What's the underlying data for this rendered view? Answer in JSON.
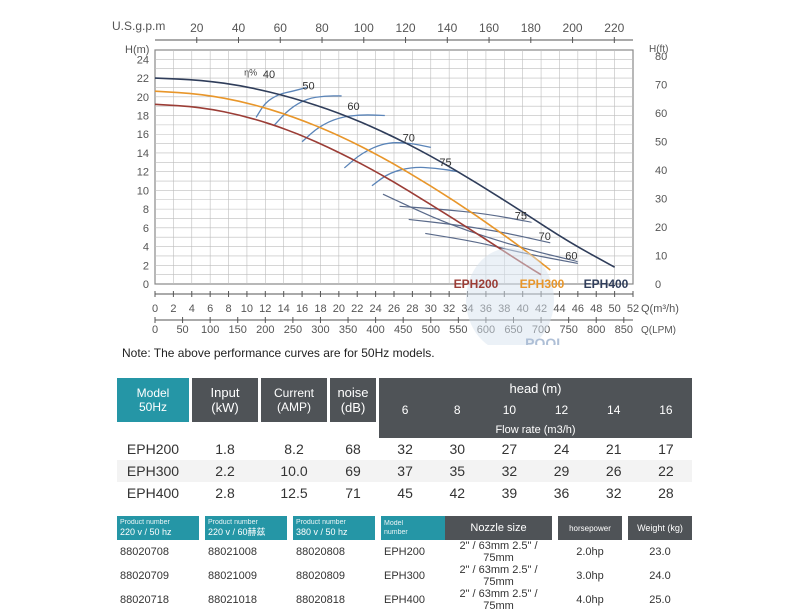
{
  "chart_data": {
    "type": "line",
    "top_axis_label": "U.S.g.p.m",
    "top_ticks": [
      20,
      40,
      60,
      80,
      100,
      120,
      140,
      160,
      180,
      200,
      220
    ],
    "ylabel_left": "H(m)",
    "ylabel_right": "H(ft)",
    "y_ticks_left": [
      0,
      2,
      4,
      6,
      8,
      10,
      12,
      14,
      16,
      18,
      20,
      22,
      24
    ],
    "y_ticks_right": [
      0,
      10,
      20,
      30,
      40,
      50,
      60,
      70,
      80
    ],
    "xlabel_m3h": "Q(m³/h)",
    "x_ticks_m3h": [
      0,
      2,
      4,
      6,
      8,
      10,
      12,
      14,
      16,
      18,
      20,
      22,
      24,
      26,
      28,
      30,
      32,
      34,
      36,
      38,
      40,
      42,
      44,
      46,
      48,
      50,
      52
    ],
    "xlabel_lpm": "Q(LPM)",
    "x_ticks_lpm": [
      0,
      50,
      100,
      150,
      200,
      250,
      300,
      350,
      400,
      450,
      500,
      550,
      600,
      650,
      700,
      750,
      800,
      850
    ],
    "xlim": [
      0,
      52
    ],
    "ylim": [
      0,
      25
    ],
    "grid": true,
    "efficiency_label": "η%",
    "series": [
      {
        "name": "EPH200",
        "color": "#9b3d36",
        "x": [
          0,
          5,
          10,
          15,
          20,
          25,
          30,
          35,
          40,
          42
        ],
        "y": [
          19.2,
          18.9,
          17.9,
          16.3,
          14.1,
          11.5,
          8.5,
          5.4,
          2.2,
          1.0
        ]
      },
      {
        "name": "EPH300",
        "color": "#e8962a",
        "x": [
          0,
          5,
          10,
          15,
          20,
          25,
          30,
          35,
          40,
          43
        ],
        "y": [
          20.6,
          20.3,
          19.4,
          17.9,
          15.9,
          13.4,
          10.5,
          7.3,
          3.8,
          1.5
        ]
      },
      {
        "name": "EPH400",
        "color": "#2f3d5a",
        "x": [
          0,
          5,
          10,
          15,
          20,
          25,
          30,
          35,
          40,
          45,
          50
        ],
        "y": [
          22.0,
          21.8,
          21.1,
          19.9,
          18.3,
          16.2,
          13.7,
          10.8,
          7.7,
          4.5,
          1.8
        ]
      }
    ],
    "efficiency_labels": [
      {
        "text": "40",
        "x": 12.4,
        "y": 22.0
      },
      {
        "text": "50",
        "x": 16.7,
        "y": 20.8
      },
      {
        "text": "60",
        "x": 21.6,
        "y": 18.6
      },
      {
        "text": "70",
        "x": 27.6,
        "y": 15.2
      },
      {
        "text": "75",
        "x": 31.6,
        "y": 12.6
      },
      {
        "text": "75",
        "x": 39.8,
        "y": 6.9
      },
      {
        "text": "70",
        "x": 42.4,
        "y": 4.7
      },
      {
        "text": "60",
        "x": 45.3,
        "y": 2.6
      }
    ],
    "efficiency_arcs": [
      {
        "x": [
          11.0,
          12.0,
          13.5,
          15.0,
          16.5
        ],
        "y": [
          17.8,
          19.4,
          20.3,
          20.6,
          21.0
        ]
      },
      {
        "x": [
          13.0,
          14.6,
          16.5,
          18.5,
          20.3
        ],
        "y": [
          17.0,
          18.7,
          19.8,
          20.1,
          20.1
        ]
      },
      {
        "x": [
          16.0,
          17.8,
          20.0,
          22.5,
          25.0
        ],
        "y": [
          15.2,
          16.8,
          17.8,
          18.1,
          18.0
        ]
      },
      {
        "x": [
          20.6,
          22.5,
          25.0,
          27.5,
          30.0
        ],
        "y": [
          12.4,
          14.0,
          15.1,
          15.1,
          14.6
        ]
      },
      {
        "x": [
          23.6,
          25.5,
          28.0,
          30.5,
          33.0
        ],
        "y": [
          10.5,
          11.9,
          12.5,
          12.4,
          12.0
        ]
      }
    ],
    "efficiency_lines": [
      {
        "x": [
          26.6,
          31.0,
          36.0,
          41.0
        ],
        "y": [
          8.3,
          8.0,
          7.5,
          6.6
        ]
      },
      {
        "x": [
          27.6,
          33.0,
          38.0,
          43.0
        ],
        "y": [
          6.9,
          6.3,
          5.5,
          4.4
        ]
      },
      {
        "x": [
          29.4,
          35.0,
          40.0,
          46.0
        ],
        "y": [
          5.4,
          4.5,
          3.3,
          2.2
        ]
      },
      {
        "x": [
          24.8,
          32.0,
          40.0,
          46.0
        ],
        "y": [
          9.6,
          6.3,
          3.8,
          2.4
        ]
      }
    ]
  },
  "note": "Note: The above performance curves are for 50Hz models.",
  "watermark": "POOL",
  "spec_table": {
    "model_header": "Model",
    "model_sub": "50Hz",
    "input_header": "Input",
    "input_unit": "(kW)",
    "current_header": "Current",
    "current_unit": "(AMP)",
    "noise_header": "noise",
    "noise_unit": "(dB)",
    "head_label": "head (m)",
    "heads": [
      "6",
      "8",
      "10",
      "12",
      "14",
      "16"
    ],
    "flow_label": "Flow rate (m3/h)",
    "rows": [
      {
        "model": "EPH200",
        "input": "1.8",
        "current": "8.2",
        "noise": "68",
        "flows": [
          "32",
          "30",
          "27",
          "24",
          "21",
          "17"
        ]
      },
      {
        "model": "EPH300",
        "input": "2.2",
        "current": "10.0",
        "noise": "69",
        "flows": [
          "37",
          "35",
          "32",
          "29",
          "26",
          "22"
        ]
      },
      {
        "model": "EPH400",
        "input": "2.8",
        "current": "12.5",
        "noise": "71",
        "flows": [
          "45",
          "42",
          "39",
          "36",
          "32",
          "28"
        ]
      }
    ]
  },
  "product_table": {
    "h_pn1_label": "Product number",
    "h_pn1_sub": "220 v / 50 hz",
    "h_pn2_label": "Product number",
    "h_pn2_sub": "220 v / 60赫兹",
    "h_pn3_label": "Product number",
    "h_pn3_sub": "380 v / 50 hz",
    "h_model_label": "Model",
    "h_model_sub": "number",
    "h_nozzle": "Nozzle size",
    "h_hp": "horsepower",
    "h_weight": "Weight (kg)",
    "rows": [
      {
        "pn1": "88020708",
        "pn2": "88021008",
        "pn3": "88020808",
        "model": "EPH200",
        "nozzle": "2\" / 63mm  2.5\" / 75mm",
        "hp": "2.0hp",
        "weight": "23.0"
      },
      {
        "pn1": "88020709",
        "pn2": "88021009",
        "pn3": "88020809",
        "model": "EPH300",
        "nozzle": "2\" / 63mm  2.5\" / 75mm",
        "hp": "3.0hp",
        "weight": "24.0"
      },
      {
        "pn1": "88020718",
        "pn2": "88021018",
        "pn3": "88020818",
        "model": "EPH400",
        "nozzle": "2\" / 63mm  2.5\" / 75mm",
        "hp": "4.0hp",
        "weight": "25.0"
      }
    ]
  }
}
